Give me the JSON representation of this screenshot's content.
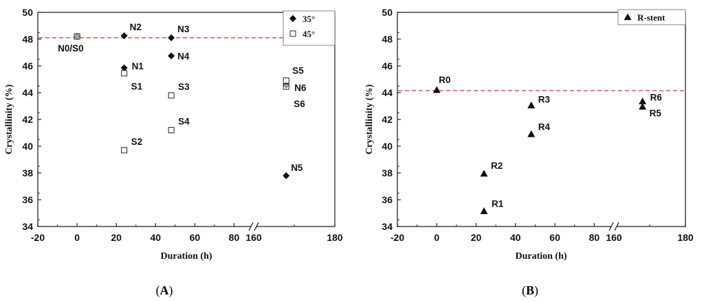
{
  "chart_data": [
    {
      "panel_label": "A",
      "type": "scatter",
      "xlabel": "Duration  (h)",
      "ylabel": "Crystallinity (%)",
      "xlim": [
        -20,
        180
      ],
      "x_axis_break": [
        90,
        160
      ],
      "ylim": [
        34,
        50
      ],
      "x_ticks": [
        -20,
        0,
        20,
        40,
        60,
        80,
        160,
        180
      ],
      "y_ticks": [
        34,
        36,
        38,
        40,
        42,
        44,
        46,
        48,
        50
      ],
      "grid": false,
      "legend_position": "top-right",
      "reference_line": {
        "y": 48.1,
        "style": "dashed",
        "color": "#d9534f"
      },
      "series": [
        {
          "name": "35°",
          "marker": "filled-diamond",
          "color": "#111111",
          "points": [
            {
              "label": "N0/S0",
              "x": 0,
              "y": 48.2
            },
            {
              "label": "N1",
              "x": 24,
              "y": 45.85
            },
            {
              "label": "N2",
              "x": 24,
              "y": 48.25
            },
            {
              "label": "N3",
              "x": 48,
              "y": 48.1
            },
            {
              "label": "N4",
              "x": 48,
              "y": 46.75
            },
            {
              "label": "N5",
              "x": 168,
              "y": 37.8
            },
            {
              "label": "N6",
              "x": 168,
              "y": 44.55
            }
          ]
        },
        {
          "name": "45°",
          "marker": "open-square",
          "color": "#111111",
          "points": [
            {
              "label": "",
              "x": 0,
              "y": 48.2
            },
            {
              "label": "S1",
              "x": 24,
              "y": 45.45
            },
            {
              "label": "S2",
              "x": 24,
              "y": 39.7
            },
            {
              "label": "S3",
              "x": 48,
              "y": 43.8
            },
            {
              "label": "S4",
              "x": 48,
              "y": 41.2
            },
            {
              "label": "S5",
              "x": 168,
              "y": 44.9
            },
            {
              "label": "S6",
              "x": 168,
              "y": 44.45
            }
          ]
        }
      ]
    },
    {
      "panel_label": "B",
      "type": "scatter",
      "xlabel": "Duration  (h)",
      "ylabel": "Crystallinity (%)",
      "xlim": [
        -20,
        180
      ],
      "x_axis_break": [
        90,
        160
      ],
      "ylim": [
        34,
        50
      ],
      "x_ticks": [
        -20,
        0,
        20,
        40,
        60,
        80,
        160,
        180
      ],
      "y_ticks": [
        34,
        36,
        38,
        40,
        42,
        44,
        46,
        48,
        50
      ],
      "grid": false,
      "legend_position": "top-right",
      "reference_line": {
        "y": 44.15,
        "style": "dashed",
        "color": "#d9534f"
      },
      "series": [
        {
          "name": "R-stent",
          "marker": "filled-triangle",
          "color": "#111111",
          "points": [
            {
              "label": "R0",
              "x": 0,
              "y": 44.2
            },
            {
              "label": "R1",
              "x": 24,
              "y": 35.15
            },
            {
              "label": "R2",
              "x": 24,
              "y": 37.95
            },
            {
              "label": "R3",
              "x": 48,
              "y": 43.05
            },
            {
              "label": "R4",
              "x": 48,
              "y": 40.9
            },
            {
              "label": "R5",
              "x": 168,
              "y": 42.95
            },
            {
              "label": "R6",
              "x": 168,
              "y": 43.35
            }
          ]
        }
      ]
    }
  ]
}
